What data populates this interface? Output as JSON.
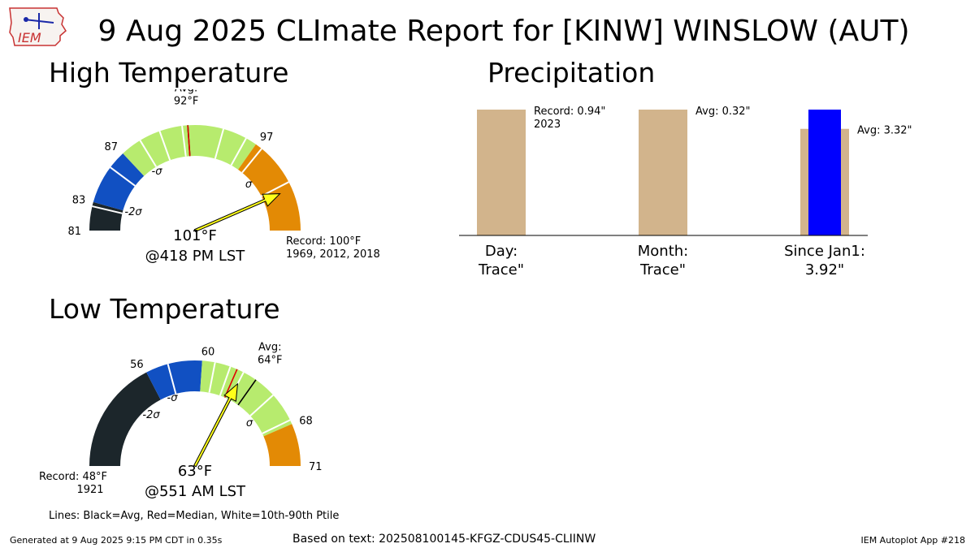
{
  "header": {
    "title": "9 Aug 2025 CLImate Report for [KINW] WINSLOW (AUT)",
    "logo_text": "IEM"
  },
  "sections": {
    "high": "High Temperature",
    "low": "Low Temperature",
    "precip": "Precipitation"
  },
  "chart_data": [
    {
      "type": "gauge",
      "id": "high",
      "range": [
        81,
        104
      ],
      "tick_labels": [
        "81",
        "83",
        "87",
        "97"
      ],
      "sigma_labels": [
        "-2σ",
        "-σ",
        "σ"
      ],
      "bands": [
        {
          "from": 81,
          "to": 83,
          "color": "#1c262b"
        },
        {
          "from": 83,
          "to": 87,
          "color": "#1150c2"
        },
        {
          "from": 87,
          "to": 97,
          "color": "#b7eb6e"
        },
        {
          "from": 97,
          "to": 104,
          "color": "#e38a05"
        }
      ],
      "white_lines": [
        82.7,
        85.7,
        88.5,
        90.0,
        91.6,
        94.5,
        96.2,
        97.5,
        100.5
      ],
      "median": 92.0,
      "avg_label": [
        "Avg:",
        "92$^\\circ$F"
      ],
      "avg_value": 92,
      "observed": 101,
      "observed_label": [
        "101$^\\circ$F",
        "@418 PM LST"
      ],
      "record_label": [
        "Record: 100$^\\circ$F",
        "1969, 2012, 2018"
      ]
    },
    {
      "type": "gauge",
      "id": "low",
      "range": [
        48,
        71
      ],
      "tick_labels": [
        "56",
        "60",
        "68",
        "71"
      ],
      "sigma_labels": [
        "-2σ",
        "-σ",
        "σ"
      ],
      "bands": [
        {
          "from": 48,
          "to": 56,
          "color": "#1c262b"
        },
        {
          "from": 56,
          "to": 60,
          "color": "#1150c2"
        },
        {
          "from": 60,
          "to": 68,
          "color": "#b7eb6e"
        },
        {
          "from": 68,
          "to": 71,
          "color": "#e38a05"
        }
      ],
      "white_lines": [
        57.6,
        60.9,
        62.0,
        63.0,
        65.6,
        67.7
      ],
      "median": 62.5,
      "avg_label": [
        "Avg:",
        "64$^\\circ$F"
      ],
      "avg_value": 64,
      "observed": 63,
      "observed_label": [
        "63$^\\circ$F",
        "@551 AM LST"
      ],
      "record_label": [
        "Record: 48$^\\circ$F",
        "1921"
      ]
    },
    {
      "type": "bar",
      "id": "precip",
      "categories": [
        "Day:\nTrace\"",
        "Month:\nTrace\"",
        "Since Jan1:\n3.92\""
      ],
      "record_values": [
        0.94,
        null,
        null
      ],
      "avg_values": [
        null,
        0.32,
        3.32
      ],
      "observed_values": [
        0.0001,
        0.0001,
        3.92
      ],
      "annotations": [
        "Record: 0.94\"\n2023",
        "Avg: 0.32\"",
        "Avg: 3.32\""
      ],
      "colors": {
        "record": "#d2b48c",
        "observed": "#0000ff"
      }
    }
  ],
  "legend": {
    "lines_note": "Lines: Black=Avg, Red=Median, White=10th-90th Ptile"
  },
  "footer": {
    "generated": "Generated at 9 Aug 2025 9:15 PM CDT in 0.35s",
    "source": "Based on text: 202508100145-KFGZ-CDUS45-CLIINW",
    "app": "IEM Autoplot App #218"
  }
}
